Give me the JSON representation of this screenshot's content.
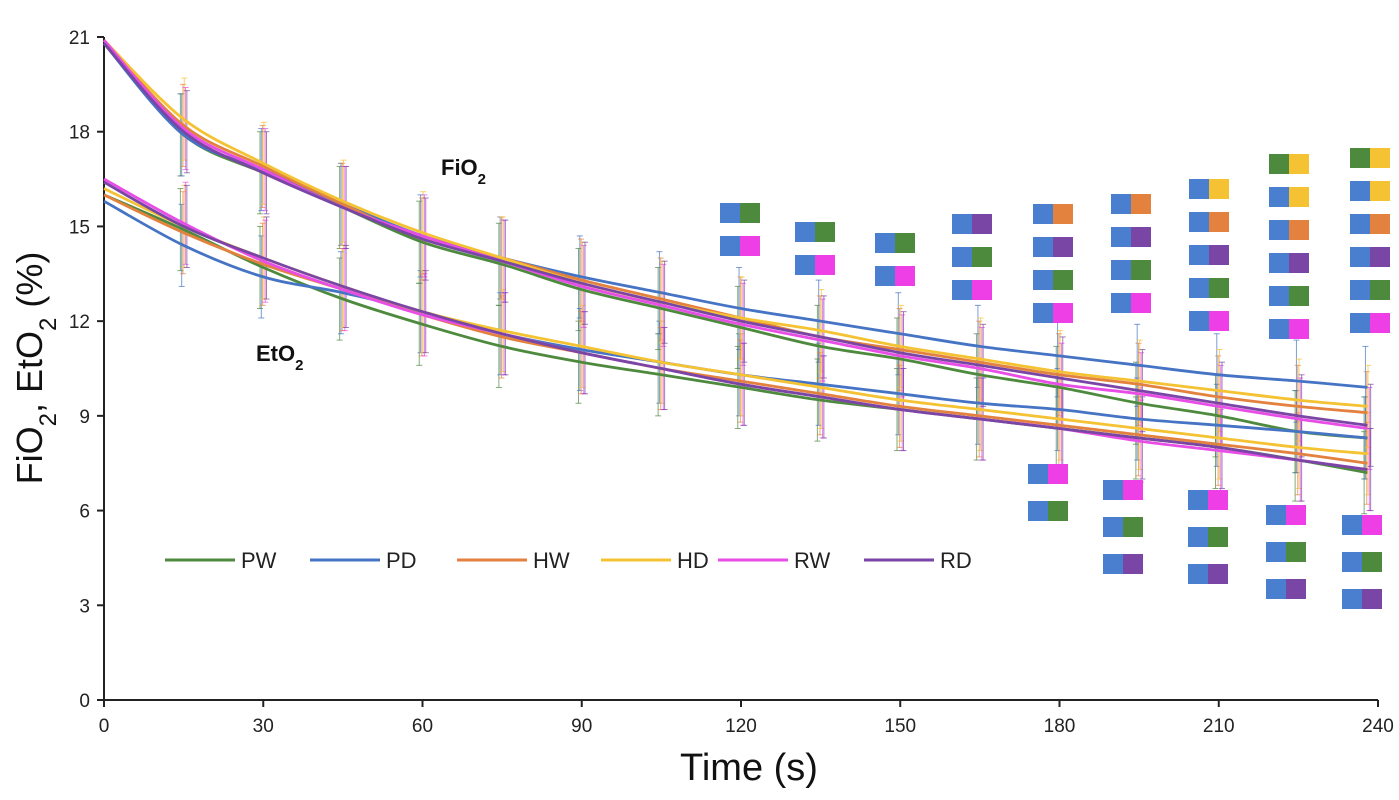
{
  "chart_data": {
    "type": "line",
    "xlabel": "Time (s)",
    "ylabel": {
      "parts": [
        {
          "t": "FiO",
          "sub": false
        },
        {
          "t": "2",
          "sub": true
        },
        {
          "t": ", EtO",
          "sub": false
        },
        {
          "t": "2",
          "sub": true
        },
        {
          "t": "  (%)",
          "sub": false
        }
      ]
    },
    "xlim": [
      0,
      240
    ],
    "ylim": [
      0,
      21
    ],
    "x_ticks": [
      0,
      30,
      60,
      90,
      120,
      150,
      180,
      210,
      240
    ],
    "y_ticks": [
      0,
      3,
      6,
      9,
      12,
      15,
      18,
      21
    ],
    "x_ticks_labels": [
      "0",
      "30",
      "60",
      "90",
      "120",
      "150",
      "180",
      "210",
      "240"
    ],
    "y_ticks_labels": [
      "0",
      "3",
      "6",
      "9",
      "12",
      "15",
      "18",
      "21"
    ],
    "grid": false,
    "legend_position": "bottom-left",
    "x": [
      0,
      15,
      30,
      45,
      60,
      75,
      90,
      105,
      120,
      135,
      150,
      165,
      180,
      195,
      210,
      225,
      238
    ],
    "groups": [
      {
        "label_main": "FiO",
        "label_sub": "2",
        "label_key": "fio2",
        "error": 1.3
      },
      {
        "label_main": "EtO",
        "label_sub": "2",
        "label_key": "eto2",
        "error": 1.3
      }
    ],
    "series": [
      {
        "name": "PW",
        "color": "#4e8a3e",
        "fio2": [
          20.8,
          17.9,
          16.7,
          15.6,
          14.5,
          13.8,
          13.0,
          12.4,
          11.8,
          11.2,
          10.8,
          10.3,
          9.9,
          9.4,
          9.0,
          8.5,
          8.3
        ],
        "eto2": [
          16.0,
          14.9,
          13.7,
          12.7,
          11.9,
          11.2,
          10.7,
          10.3,
          9.9,
          9.5,
          9.2,
          8.9,
          8.6,
          8.3,
          8.0,
          7.6,
          7.2
        ]
      },
      {
        "name": "PD",
        "color": "#4674c4",
        "fio2": [
          20.8,
          17.9,
          16.8,
          15.7,
          14.7,
          14.0,
          13.4,
          12.9,
          12.4,
          12.0,
          11.6,
          11.2,
          10.9,
          10.6,
          10.3,
          10.1,
          9.9
        ],
        "eto2": [
          15.8,
          14.4,
          13.4,
          12.9,
          12.3,
          11.6,
          11.1,
          10.7,
          10.3,
          10.0,
          9.7,
          9.4,
          9.2,
          8.9,
          8.7,
          8.5,
          8.3
        ]
      },
      {
        "name": "HW",
        "color": "#e3823e",
        "fio2": [
          20.9,
          18.2,
          16.9,
          15.7,
          14.6,
          14.0,
          13.3,
          12.7,
          12.1,
          11.5,
          11.1,
          10.7,
          10.3,
          10.0,
          9.6,
          9.3,
          9.1
        ],
        "eto2": [
          16.0,
          14.8,
          13.8,
          13.0,
          12.2,
          11.5,
          11.0,
          10.5,
          10.1,
          9.7,
          9.3,
          9.0,
          8.7,
          8.4,
          8.1,
          7.8,
          7.5
        ]
      },
      {
        "name": "HD",
        "color": "#f4c232",
        "fio2": [
          20.9,
          18.4,
          17.0,
          15.8,
          14.8,
          14.0,
          13.2,
          12.6,
          12.1,
          11.7,
          11.2,
          10.8,
          10.4,
          10.1,
          9.8,
          9.5,
          9.3
        ],
        "eto2": [
          16.2,
          15.0,
          14.0,
          13.1,
          12.3,
          11.7,
          11.2,
          10.7,
          10.3,
          9.9,
          9.5,
          9.2,
          8.9,
          8.6,
          8.3,
          8.0,
          7.8
        ]
      },
      {
        "name": "RW",
        "color": "#e84de6",
        "fio2": [
          20.9,
          18.1,
          16.8,
          15.6,
          14.7,
          13.9,
          13.1,
          12.5,
          11.9,
          11.4,
          10.9,
          10.5,
          10.0,
          9.7,
          9.3,
          8.9,
          8.6
        ],
        "eto2": [
          16.5,
          15.1,
          13.9,
          13.0,
          12.2,
          11.6,
          11.0,
          10.5,
          10.0,
          9.6,
          9.2,
          8.9,
          8.6,
          8.2,
          7.9,
          7.6,
          7.3
        ]
      },
      {
        "name": "RD",
        "color": "#7a46a6",
        "fio2": [
          20.8,
          18.0,
          16.7,
          15.6,
          14.6,
          13.9,
          13.2,
          12.6,
          12.0,
          11.5,
          11.0,
          10.6,
          10.2,
          9.8,
          9.4,
          9.0,
          8.7
        ],
        "eto2": [
          16.4,
          15.0,
          14.0,
          13.1,
          12.3,
          11.6,
          11.0,
          10.5,
          10.0,
          9.6,
          9.2,
          8.9,
          8.6,
          8.3,
          8.0,
          7.6,
          7.3
        ]
      }
    ],
    "significance_markers": {
      "description": "Colored square pairs (blue square + colored square) show pairwise significance vs PD",
      "upper": [
        {
          "x": 135,
          "pairs": [
            [
              "blue",
              "green"
            ],
            [
              "blue",
              "magenta"
            ]
          ]
        },
        {
          "x": 150,
          "pairs": [
            [
              "blue",
              "green"
            ],
            [
              "blue",
              "magenta"
            ]
          ]
        },
        {
          "x": 165,
          "pairs": [
            [
              "blue",
              "green"
            ],
            [
              "blue",
              "magenta"
            ]
          ]
        },
        {
          "x": 180,
          "pairs": [
            [
              "blue",
              "purple"
            ],
            [
              "blue",
              "green"
            ],
            [
              "blue",
              "magenta"
            ]
          ]
        },
        {
          "x": 195,
          "pairs": [
            [
              "blue",
              "orange"
            ],
            [
              "blue",
              "purple"
            ],
            [
              "blue",
              "green"
            ],
            [
              "blue",
              "magenta"
            ]
          ]
        },
        {
          "x": 210,
          "pairs": [
            [
              "blue",
              "orange"
            ],
            [
              "blue",
              "purple"
            ],
            [
              "blue",
              "green"
            ],
            [
              "blue",
              "magenta"
            ]
          ]
        },
        {
          "x": 225,
          "pairs": [
            [
              "blue",
              "yellow"
            ],
            [
              "blue",
              "orange"
            ],
            [
              "blue",
              "purple"
            ],
            [
              "blue",
              "green"
            ],
            [
              "blue",
              "magenta"
            ]
          ]
        },
        {
          "x": 240,
          "pairs": [
            [
              "green",
              "yellow"
            ],
            [
              "blue",
              "yellow"
            ],
            [
              "blue",
              "orange"
            ],
            [
              "blue",
              "purple"
            ],
            [
              "blue",
              "green"
            ],
            [
              "blue",
              "magenta"
            ]
          ]
        },
        {
          "x": 255,
          "pairs": [
            [
              "green",
              "yellow"
            ],
            [
              "blue",
              "yellow"
            ],
            [
              "blue",
              "orange"
            ],
            [
              "blue",
              "purple"
            ],
            [
              "blue",
              "green"
            ],
            [
              "blue",
              "magenta"
            ]
          ]
        }
      ],
      "lower": [
        {
          "x": 225,
          "pairs": [
            [
              "blue",
              "magenta"
            ],
            [
              "blue",
              "green"
            ]
          ]
        },
        {
          "x": 240,
          "pairs": [
            [
              "blue",
              "magenta"
            ],
            [
              "blue",
              "green"
            ],
            [
              "blue",
              "purple"
            ]
          ]
        },
        {
          "x": 255,
          "pairs": [
            [
              "blue",
              "magenta"
            ],
            [
              "blue",
              "green"
            ],
            [
              "blue",
              "purple"
            ]
          ]
        },
        {
          "x": 270,
          "pairs": [
            [
              "blue",
              "magenta"
            ],
            [
              "blue",
              "green"
            ],
            [
              "blue",
              "purple"
            ]
          ]
        },
        {
          "x": 285,
          "pairs": [
            [
              "blue",
              "magenta"
            ],
            [
              "blue",
              "green"
            ],
            [
              "blue",
              "purple"
            ]
          ]
        }
      ],
      "colors": {
        "blue": "#4a7fd0",
        "green": "#4e8a3e",
        "magenta": "#ee3ee6",
        "purple": "#7a46a6",
        "orange": "#e3823e",
        "yellow": "#f4c232"
      }
    }
  }
}
